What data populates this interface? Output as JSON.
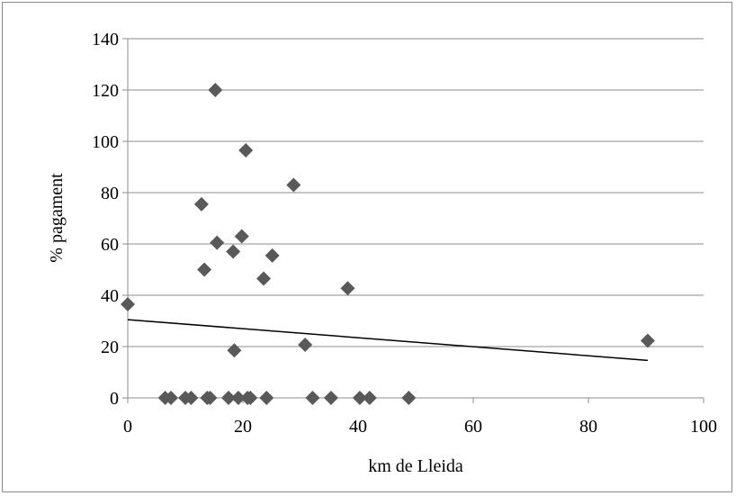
{
  "chart_data": {
    "type": "scatter",
    "title": "",
    "xlabel": "km de Lleida",
    "ylabel": "% pagament",
    "xlim": [
      0,
      100
    ],
    "ylim": [
      0,
      140
    ],
    "x_ticks": [
      0,
      20,
      40,
      60,
      80,
      100
    ],
    "y_ticks": [
      0,
      20,
      40,
      60,
      80,
      100,
      120,
      140
    ],
    "x_tick_labels": [
      "0",
      "20",
      "40",
      "60",
      "80",
      "100"
    ],
    "y_tick_labels": [
      "0",
      "20",
      "40",
      "60",
      "80",
      "100",
      "120",
      "140"
    ],
    "grid": "horizontal",
    "legend": "none",
    "marker": "diamond",
    "marker_color": "#595959",
    "trendline_color": "#000000",
    "series": [
      {
        "points": [
          {
            "x": 0,
            "y": 36.5
          },
          {
            "x": 6.5,
            "y": 0
          },
          {
            "x": 7.5,
            "y": 0
          },
          {
            "x": 10,
            "y": 0
          },
          {
            "x": 11,
            "y": 0
          },
          {
            "x": 12.8,
            "y": 75.5
          },
          {
            "x": 13.3,
            "y": 50
          },
          {
            "x": 13.8,
            "y": 0
          },
          {
            "x": 14.3,
            "y": 0
          },
          {
            "x": 15.2,
            "y": 120
          },
          {
            "x": 15.5,
            "y": 60.5
          },
          {
            "x": 17.5,
            "y": 0
          },
          {
            "x": 18.3,
            "y": 57
          },
          {
            "x": 18.5,
            "y": 18.5
          },
          {
            "x": 19.2,
            "y": 0
          },
          {
            "x": 19.8,
            "y": 63
          },
          {
            "x": 20.5,
            "y": 96.5
          },
          {
            "x": 20.8,
            "y": 0
          },
          {
            "x": 21.3,
            "y": 0
          },
          {
            "x": 23.6,
            "y": 46.5
          },
          {
            "x": 24.1,
            "y": 0
          },
          {
            "x": 25.1,
            "y": 55.5
          },
          {
            "x": 28.8,
            "y": 83
          },
          {
            "x": 30.8,
            "y": 20.7
          },
          {
            "x": 32.1,
            "y": 0
          },
          {
            "x": 35.3,
            "y": 0
          },
          {
            "x": 38.2,
            "y": 42.7
          },
          {
            "x": 40.3,
            "y": 0
          },
          {
            "x": 42,
            "y": 0
          },
          {
            "x": 48.8,
            "y": 0
          },
          {
            "x": 90.3,
            "y": 22.3
          }
        ]
      }
    ],
    "trendline": {
      "x": [
        0,
        90.3
      ],
      "y": [
        30.5,
        14.6
      ]
    }
  }
}
